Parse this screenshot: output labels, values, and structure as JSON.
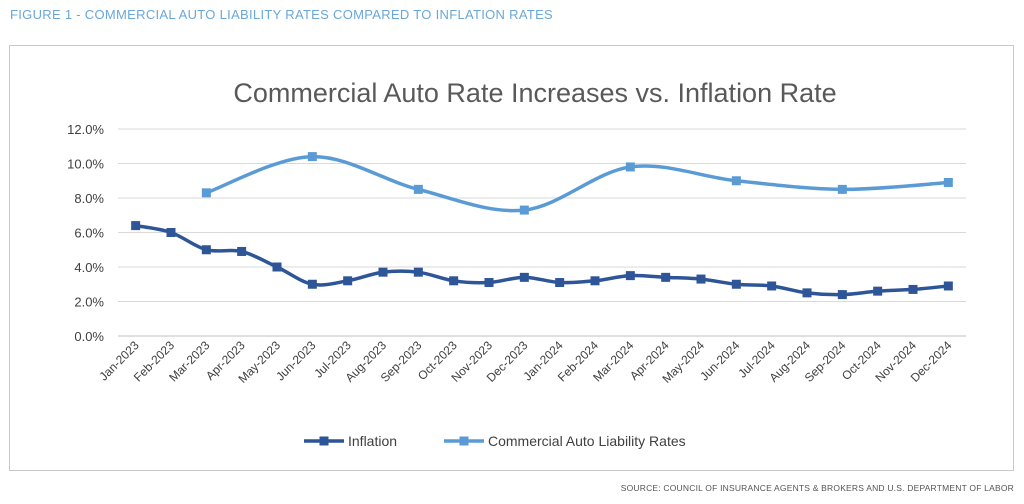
{
  "figure_label": "FIGURE 1 - COMMERCIAL AUTO LIABILITY RATES COMPARED TO INFLATION RATES",
  "source": "SOURCE: COUNCIL OF INSURANCE AGENTS & BROKERS AND U.S. DEPARTMENT OF LABOR",
  "chart_data": {
    "type": "line",
    "title": "Commercial Auto Rate Increases vs. Inflation Rate",
    "xlabel": "",
    "ylabel": "",
    "ylim": [
      0,
      12
    ],
    "yticks": [
      "0.0%",
      "2.0%",
      "4.0%",
      "6.0%",
      "8.0%",
      "10.0%",
      "12.0%"
    ],
    "grid": true,
    "legend_position": "bottom",
    "categories": [
      "Jan-2023",
      "Feb-2023",
      "Mar-2023",
      "Apr-2023",
      "May-2023",
      "Jun-2023",
      "Jul-2023",
      "Aug-2023",
      "Sep-2023",
      "Oct-2023",
      "Nov-2023",
      "Dec-2023",
      "Jan-2024",
      "Feb-2024",
      "Mar-2024",
      "Apr-2024",
      "May-2024",
      "Jun-2024",
      "Jul-2024",
      "Aug-2024",
      "Sep-2024",
      "Oct-2024",
      "Nov-2024",
      "Dec-2024"
    ],
    "series": [
      {
        "name": "Inflation",
        "color": "#2e5597",
        "values": [
          6.4,
          6.0,
          5.0,
          4.9,
          4.0,
          3.0,
          3.2,
          3.7,
          3.7,
          3.2,
          3.1,
          3.4,
          3.1,
          3.2,
          3.5,
          3.4,
          3.3,
          3.0,
          2.9,
          2.5,
          2.4,
          2.6,
          2.7,
          2.9
        ]
      },
      {
        "name": "Commercial Auto Liability Rates",
        "color": "#5b9bd5",
        "values": [
          null,
          null,
          8.3,
          null,
          null,
          10.4,
          null,
          null,
          8.5,
          null,
          null,
          7.3,
          null,
          null,
          9.8,
          null,
          null,
          9.0,
          null,
          null,
          8.5,
          null,
          null,
          8.9
        ]
      }
    ]
  }
}
